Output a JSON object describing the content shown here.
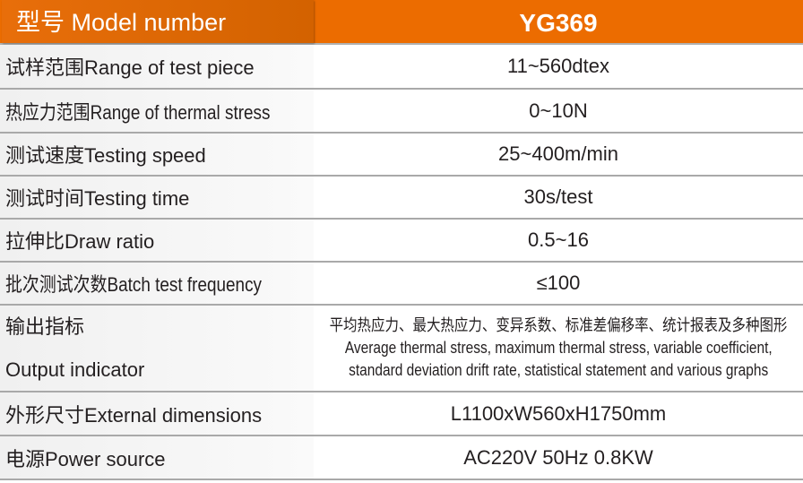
{
  "header": {
    "label": "型号 Model number",
    "value": "YG369"
  },
  "rows": [
    {
      "label": "试样范围Range of test piece",
      "value": "11~560dtex"
    },
    {
      "label": "热应力范围Range of thermal stress",
      "value": "0~10N"
    },
    {
      "label": "测试速度Testing speed",
      "value": "25~400m/min"
    },
    {
      "label": "测试时间Testing time",
      "value": "30s/test"
    },
    {
      "label": "拉伸比Draw ratio",
      "value": "0.5~16"
    },
    {
      "label": "批次测试次数Batch test frequency",
      "value": "≤100"
    },
    {
      "label_cn": "输出指标",
      "label_en": "Output indicator",
      "value_cn": "平均热应力、最大热应力、变异系数、标准差偏移率、统计报表及多种图形",
      "value_en1": "Average thermal stress, maximum thermal stress, variable coefficient,",
      "value_en2": "standard deviation drift rate, statistical statement and various graphs"
    },
    {
      "label": "外形尺寸External dimensions",
      "value": "L1100xW560xH1750mm"
    },
    {
      "label": "电源Power source",
      "value": "AC220V  50Hz  0.8KW"
    }
  ],
  "colors": {
    "accent": "#ec6c00",
    "divider": "#a9a9a9"
  }
}
